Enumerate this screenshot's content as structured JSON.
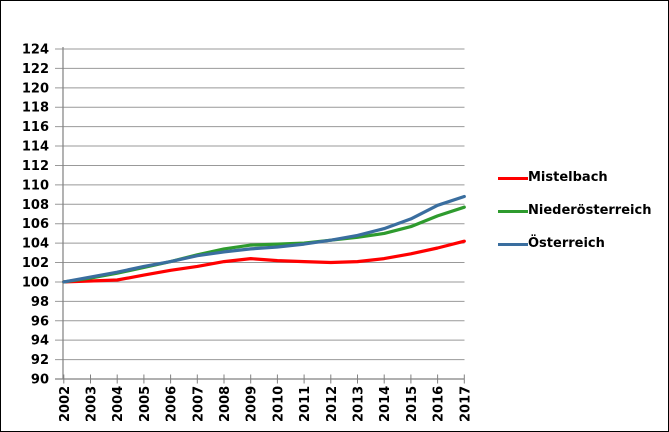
{
  "chart_data": {
    "type": "line",
    "title": "",
    "x": [
      "2002",
      "2003",
      "2004",
      "2005",
      "2006",
      "2007",
      "2008",
      "2009",
      "2010",
      "2011",
      "2012",
      "2013",
      "2014",
      "2015",
      "2016",
      "2017"
    ],
    "series": [
      {
        "name": "Mistelbach",
        "color": "#ff0000",
        "values": [
          100.0,
          100.1,
          100.2,
          100.7,
          101.2,
          101.6,
          102.1,
          102.4,
          102.2,
          102.1,
          102.0,
          102.1,
          102.4,
          102.9,
          103.5,
          104.2
        ]
      },
      {
        "name": "Niederösterreich",
        "color": "#2e9b2e",
        "values": [
          100.0,
          100.4,
          100.9,
          101.5,
          102.1,
          102.8,
          103.4,
          103.8,
          103.9,
          104.0,
          104.3,
          104.6,
          105.0,
          105.7,
          106.8,
          107.7
        ]
      },
      {
        "name": "Österreich",
        "color": "#3a6e9f",
        "values": [
          100.0,
          100.5,
          101.0,
          101.6,
          102.1,
          102.7,
          103.1,
          103.4,
          103.6,
          103.9,
          104.3,
          104.8,
          105.5,
          106.5,
          107.9,
          108.8
        ]
      }
    ],
    "xlabel": "",
    "ylabel": "",
    "ylim": [
      90,
      124
    ],
    "ytick_step": 2,
    "grid": "horizontal",
    "legend_position": "right"
  },
  "colors": {
    "background": "#ffffff",
    "frame_border": "#000000",
    "gridline": "#999999",
    "axis": "#808080",
    "tick_label": "#000000"
  }
}
